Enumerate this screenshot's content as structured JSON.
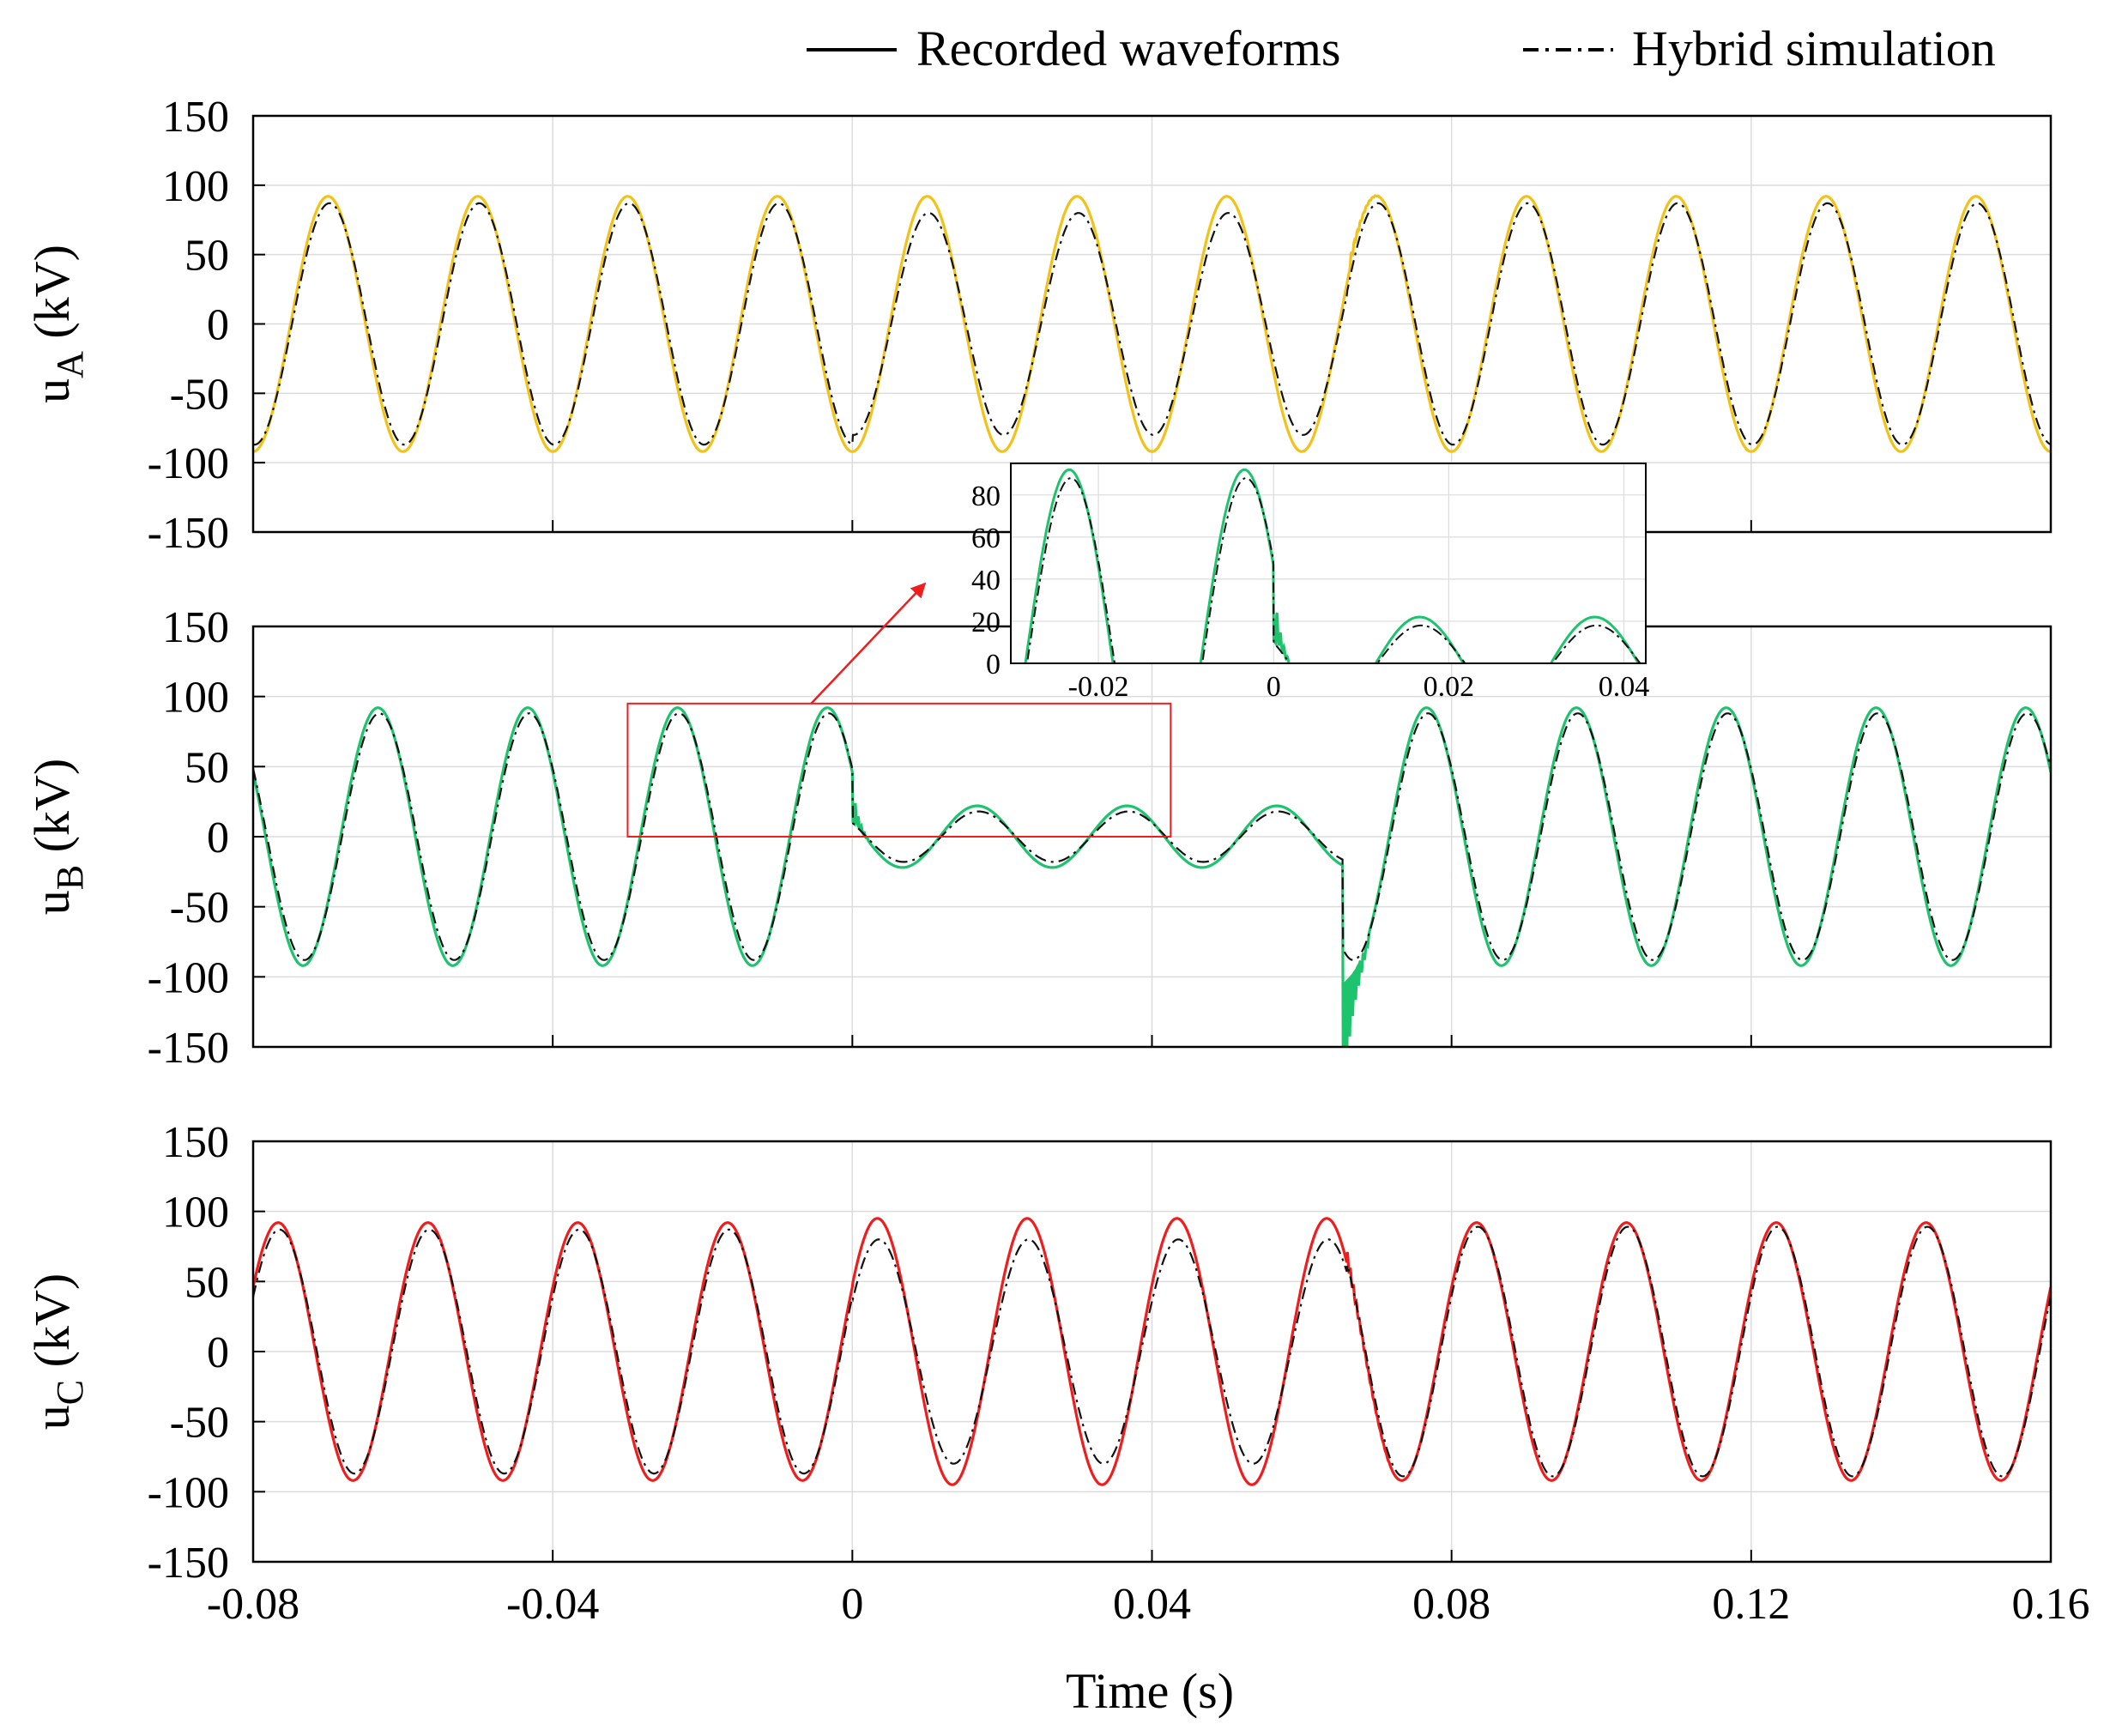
{
  "chart_data": {
    "type": "line",
    "xlabel": "Time (s)",
    "xlim": [
      -0.08,
      0.16
    ],
    "xticks": [
      -0.08,
      -0.04,
      0,
      0.04,
      0.08,
      0.12,
      0.16
    ],
    "xtick_labels": [
      "-0.08",
      "-0.04",
      "0",
      "0.04",
      "0.08",
      "0.12",
      "0.16"
    ],
    "grid": true,
    "legend_position": "top-right",
    "legend": [
      {
        "label": "Recorded waveforms",
        "style": "solid",
        "color": "#000000"
      },
      {
        "label": "Hybrid simulation",
        "style": "dash-dot",
        "color": "#000000"
      }
    ],
    "panels": [
      {
        "name": "phase-a",
        "ylabel_main": "u",
        "ylabel_sub": "A",
        "ylabel_unit": " (kV)",
        "ylim": [
          -150,
          150
        ],
        "yticks": [
          150,
          100,
          50,
          0,
          -50,
          -100,
          -150
        ],
        "ytick_labels": [
          "150",
          "100",
          "50",
          "0",
          "-50",
          "-100",
          "-150"
        ],
        "recorded_color": "#f2c218",
        "frequency_hz": 50,
        "phase_deg": -90,
        "segments": [
          {
            "t_start": -0.08,
            "t_end": 0.0,
            "recorded_amp": 92,
            "sim_amp": 87
          },
          {
            "t_start": 0.0,
            "t_end": 0.066,
            "recorded_amp": 92,
            "sim_amp": 80
          },
          {
            "t_start": 0.066,
            "t_end": 0.16,
            "recorded_amp": 92,
            "sim_amp": 87
          }
        ],
        "transients": [
          {
            "t": 0.0665,
            "magnitude": 8,
            "duration": 0.004
          }
        ]
      },
      {
        "name": "phase-b",
        "ylabel_main": "u",
        "ylabel_sub": "B",
        "ylabel_unit": " (kV)",
        "ylim": [
          -150,
          150
        ],
        "yticks": [
          150,
          100,
          50,
          0,
          -50,
          -100,
          -150
        ],
        "ytick_labels": [
          "150",
          "100",
          "50",
          "0",
          "-50",
          "-100",
          "-150"
        ],
        "recorded_color": "#1dc36d",
        "frequency_hz": 50,
        "phase_deg": 150,
        "segments": [
          {
            "t_start": -0.08,
            "t_end": 0.0,
            "recorded_amp": 92,
            "sim_amp": 88
          },
          {
            "t_start": 0.0,
            "t_end": 0.0655,
            "recorded_amp": 22,
            "sim_amp": 18
          },
          {
            "t_start": 0.0655,
            "t_end": 0.16,
            "recorded_amp": 92,
            "sim_amp": 88
          }
        ],
        "transients": [
          {
            "t": 0.0003,
            "magnitude": 18,
            "duration": 0.002
          },
          {
            "t": 0.0655,
            "magnitude": -110,
            "duration": 0.0035
          }
        ]
      },
      {
        "name": "phase-c",
        "ylabel_main": "u",
        "ylabel_sub": "C",
        "ylabel_unit": " (kV)",
        "ylim": [
          -150,
          150
        ],
        "yticks": [
          150,
          100,
          50,
          0,
          -50,
          -100,
          -150
        ],
        "ytick_labels": [
          "150",
          "100",
          "50",
          "0",
          "-50",
          "-100",
          "-150"
        ],
        "recorded_color": "#ef1d1d",
        "frequency_hz": 50,
        "phase_deg": 30,
        "segments": [
          {
            "t_start": -0.08,
            "t_end": 0.0,
            "recorded_amp": 92,
            "sim_amp": 87
          },
          {
            "t_start": 0.0,
            "t_end": 0.066,
            "recorded_amp": 95,
            "sim_amp": 80
          },
          {
            "t_start": 0.066,
            "t_end": 0.16,
            "recorded_amp": 92,
            "sim_amp": 89
          }
        ],
        "transients": [
          {
            "t": 0.066,
            "magnitude": 12,
            "duration": 0.006
          }
        ]
      }
    ],
    "inset": {
      "name": "phase-b-zoom",
      "xlim": [
        -0.03,
        0.0425
      ],
      "ylim": [
        0,
        95
      ],
      "xticks": [
        -0.02,
        0,
        0.02,
        0.04
      ],
      "xtick_labels": [
        "-0.02",
        "0",
        "0.02",
        "0.04"
      ],
      "yticks": [
        0,
        20,
        40,
        60,
        80
      ],
      "ytick_labels": [
        "0",
        "20",
        "40",
        "60",
        "80"
      ],
      "source_panel": "phase-b",
      "zoom_region": {
        "x": [
          -0.03,
          0.0425
        ],
        "y": [
          0,
          95
        ]
      },
      "recorded_color": "#1dc36d",
      "highlight_color": "#ef1d1d"
    }
  }
}
